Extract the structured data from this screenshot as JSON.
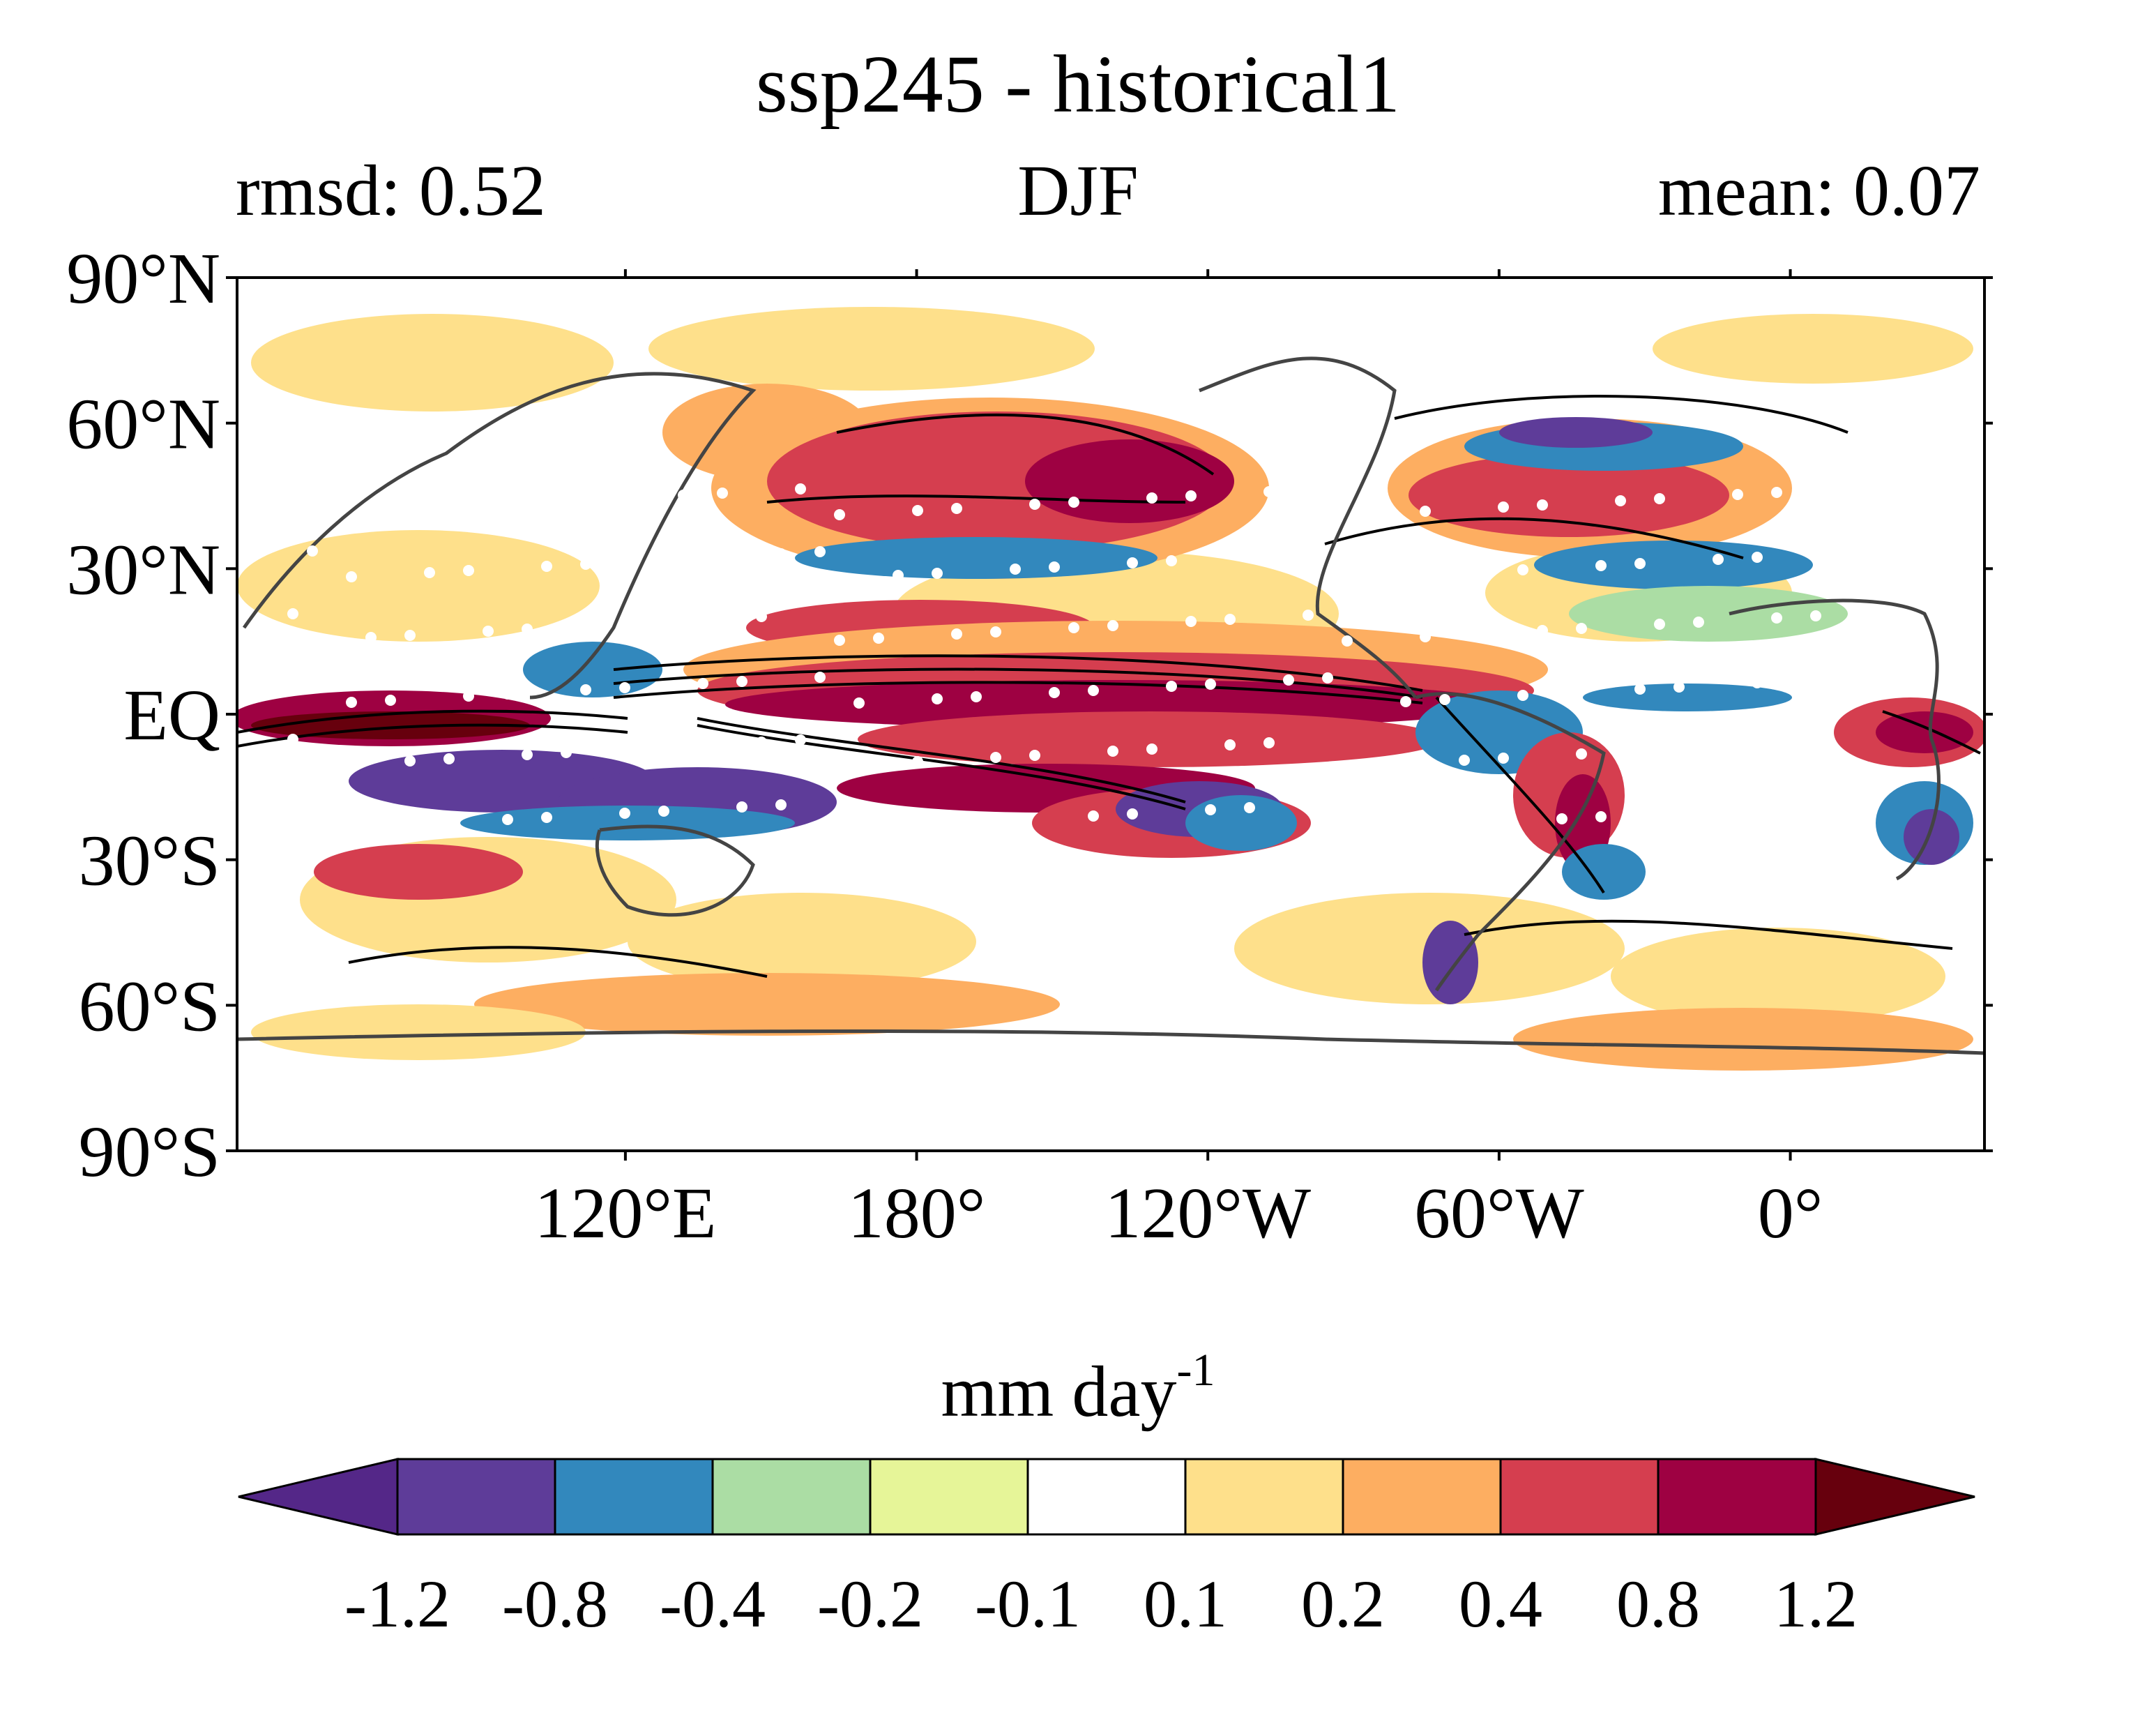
{
  "map": {
    "title": "ssp245 - historical1",
    "left_label": "rmsd: 0.52",
    "center_label": "DJF",
    "right_label": "mean: 0.07",
    "lat_ticks": [
      "90°N",
      "60°N",
      "30°N",
      "EQ",
      "30°S",
      "60°S",
      "90°S"
    ],
    "lat_values": [
      90,
      60,
      30,
      0,
      -30,
      -60,
      -90
    ],
    "lon_ticks": [
      "120°E",
      "180°",
      "120°W",
      "60°W",
      "0°"
    ],
    "lon_values": [
      120,
      180,
      240,
      300,
      360
    ],
    "lon_range": [
      40,
      400
    ],
    "lat_range": [
      -90,
      90
    ]
  },
  "colorbar": {
    "units_base": "mm day",
    "units_exp": "-1",
    "labels": [
      "-1.2",
      "-0.8",
      "-0.4",
      "-0.2",
      "-0.1",
      "0.1",
      "0.2",
      "0.4",
      "0.8",
      "1.2"
    ],
    "colors": [
      "#5e3c99",
      "#3288bd",
      "#abdda4",
      "#e6f598",
      "#ffffff",
      "#fee08b",
      "#fdae61",
      "#d53e4f",
      "#9e0142"
    ],
    "under_color": "#542788",
    "over_color": "#67000d"
  }
}
